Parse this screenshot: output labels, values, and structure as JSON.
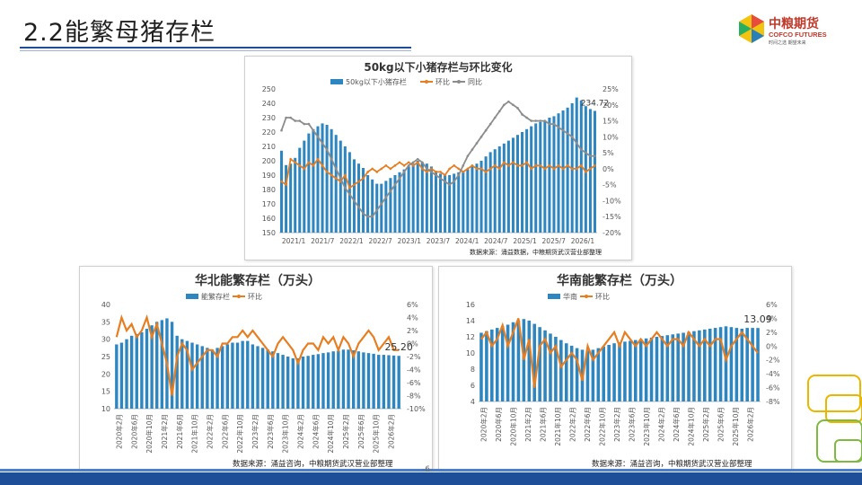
{
  "slide": {
    "title": "2.2能繁母猪存栏",
    "page_number": "-6-"
  },
  "logo": {
    "cn": "中粮期货",
    "en": "COFCO FUTURES",
    "tag": "时间之选 期望未来"
  },
  "colors": {
    "bar": "#2e86c1",
    "line_orange": "#e67e22",
    "line_gray": "#8c8c8c",
    "brand_blue": "#1f4e99"
  },
  "chart_data": [
    {
      "type": "bar",
      "title": "50kg以下小猪存栏与环比变化",
      "legend": [
        "50kg以下小猪存栏",
        "环比",
        "同比"
      ],
      "x_ticks": [
        "2021/1",
        "2021/7",
        "2022/1",
        "2022/7",
        "2023/1",
        "2023/7",
        "2024/1",
        "2024/7",
        "2025/1",
        "2025/7",
        "2026/1"
      ],
      "ylim": [
        150,
        250
      ],
      "y_ticks": [
        "250",
        "240",
        "230",
        "220",
        "210",
        "200",
        "190",
        "180",
        "170",
        "160",
        "150"
      ],
      "y2lim": [
        -20,
        25
      ],
      "y2_ticks": [
        "25%",
        "20%",
        "15%",
        "10%",
        "5%",
        "0%",
        "-5%",
        "-10%",
        "-15%",
        "-20%"
      ],
      "annotation": "234.72",
      "source": "数据来源：涌益数据，中粮期货武汉营业部整理",
      "series": [
        {
          "name": "50kg以下小猪存栏",
          "kind": "bar",
          "values": [
            207,
            197,
            198,
            202,
            209,
            214,
            219,
            222,
            224,
            226,
            225,
            222,
            218,
            214,
            210,
            206,
            201,
            198,
            195,
            190,
            187,
            184,
            184,
            186,
            188,
            190,
            192,
            194,
            196,
            198,
            200,
            199,
            198,
            196,
            193,
            191,
            190,
            190,
            191,
            192,
            193,
            194,
            196,
            198,
            200,
            203,
            206,
            208,
            210,
            212,
            214,
            216,
            218,
            220,
            222,
            224,
            226,
            227,
            228,
            230,
            231,
            233,
            235,
            237,
            240,
            244,
            242,
            238,
            236,
            234.72
          ]
        },
        {
          "name": "环比",
          "kind": "line",
          "values": [
            -4,
            -5,
            3,
            2,
            1,
            0,
            2,
            1,
            3,
            1,
            -1,
            -2,
            -3,
            -4,
            -2,
            -6,
            -5,
            -4,
            -3,
            -1,
            0,
            -1,
            0,
            1,
            0,
            1,
            2,
            1,
            2,
            1,
            2,
            0,
            -1,
            0,
            -1,
            -1,
            -2,
            0,
            1,
            0,
            -1,
            0,
            1,
            0,
            0,
            -1,
            0,
            1,
            0,
            2,
            1,
            2,
            1,
            1,
            2,
            0,
            1,
            1,
            0,
            1,
            0,
            1,
            0,
            1,
            0,
            0,
            1,
            -1,
            0,
            1
          ]
        },
        {
          "name": "同比",
          "kind": "line",
          "values": [
            12,
            16,
            16,
            15,
            15,
            14,
            14,
            12,
            10,
            8,
            6,
            3,
            0,
            -3,
            -6,
            -8,
            -10,
            -12,
            -14,
            -15,
            -15,
            -13,
            -11,
            -9,
            -7,
            -5,
            -3,
            -1,
            1,
            2,
            3,
            2,
            0,
            -1,
            -2,
            -3,
            -4,
            -5,
            -4,
            -2,
            1,
            4,
            6,
            8,
            10,
            12,
            14,
            16,
            18,
            20,
            21,
            20,
            19,
            17,
            16,
            15,
            15,
            15,
            15,
            14,
            14,
            13,
            12,
            11,
            10,
            8,
            6,
            5,
            4,
            4
          ]
        }
      ]
    },
    {
      "type": "bar",
      "title": "华北能繁存栏（万头）",
      "legend": [
        "能繁存栏",
        "环比"
      ],
      "x_ticks": [
        "2020年2月",
        "2020年6月",
        "2020年10月",
        "2021年2月",
        "2021年6月",
        "2021年10月",
        "2022年2月",
        "2022年6月",
        "2022年10月",
        "2023年2月",
        "2023年6月",
        "2023年10月",
        "2024年2月",
        "2024年6月",
        "2024年10月",
        "2025年2月",
        "2025年6月",
        "2025年10月",
        "2026年2月"
      ],
      "ylim": [
        10,
        40
      ],
      "y_ticks": [
        "40",
        "35",
        "30",
        "25",
        "20",
        "15",
        "10"
      ],
      "y2lim": [
        -10,
        6
      ],
      "y2_ticks": [
        "6%",
        "4%",
        "2%",
        "0%",
        "-2%",
        "-4%",
        "-6%",
        "-8%",
        "-10%"
      ],
      "annotation": "25.20",
      "source": "数据来源：涌益咨询，中粮期货武汉营业部整理",
      "series": [
        {
          "name": "能繁存栏",
          "kind": "bar",
          "values": [
            28.5,
            29,
            30,
            31,
            31.5,
            32,
            33,
            34,
            35,
            35.5,
            36,
            35,
            31,
            30,
            29.5,
            29,
            28.5,
            28,
            27.5,
            27,
            27.5,
            28,
            28.5,
            29,
            29,
            29.5,
            29.5,
            28.5,
            28,
            27.5,
            27,
            26.5,
            26,
            25.5,
            25,
            24.5,
            24.5,
            25,
            25.2,
            25.5,
            25.7,
            26,
            26.2,
            26.5,
            26.7,
            27,
            27,
            26.8,
            26.5,
            26.2,
            26,
            25.8,
            25.5,
            25.5,
            25.4,
            25.3,
            25.2
          ]
        },
        {
          "name": "环比",
          "kind": "line",
          "values": [
            1,
            4,
            2,
            3,
            1,
            2,
            4,
            1,
            3,
            0,
            -3,
            -8,
            -2,
            0,
            -1,
            -4,
            -3,
            -2,
            -1,
            -1,
            -2,
            0,
            0,
            1,
            1,
            2,
            1,
            2,
            1,
            0,
            -1,
            -2,
            0,
            1,
            0,
            -1,
            -3,
            -1,
            0,
            0,
            -1,
            1,
            0,
            1,
            -1,
            1,
            0,
            -2,
            0,
            1,
            2,
            1,
            -1,
            0,
            1,
            -1,
            -1
          ]
        }
      ]
    },
    {
      "type": "bar",
      "title": "华南能繁存栏（万头）",
      "legend": [
        "华南",
        "环比"
      ],
      "x_ticks": [
        "2020年2月",
        "2020年6月",
        "2020年10月",
        "2021年2月",
        "2021年6月",
        "2021年10月",
        "2022年2月",
        "2022年6月",
        "2022年10月",
        "2023年2月",
        "2023年6月",
        "2023年10月",
        "2024年2月",
        "2024年6月",
        "2024年10月",
        "2025年2月",
        "2025年6月",
        "2025年10月",
        "2026年2月"
      ],
      "ylim": [
        4,
        16
      ],
      "y_ticks": [
        "16",
        "14",
        "12",
        "10",
        "8",
        "6",
        "4"
      ],
      "y2lim": [
        -8,
        6
      ],
      "y2_ticks": [
        "6%",
        "4%",
        "2%",
        "0%",
        "-2%",
        "-4%",
        "-6%",
        "-8%"
      ],
      "annotation": "13.09",
      "source": "数据来源：涌益咨询，中粮期货武汉营业部整理",
      "series": [
        {
          "name": "华南",
          "kind": "bar",
          "values": [
            12.5,
            12.7,
            12.9,
            13.1,
            13.3,
            13.5,
            13.8,
            14,
            14.2,
            14,
            13.6,
            13.2,
            12.8,
            12.4,
            12,
            11.6,
            11.2,
            10.9,
            10.6,
            10.4,
            10.3,
            10.4,
            10.6,
            10.8,
            11,
            11.2,
            11.3,
            11.4,
            11.5,
            11.6,
            11.7,
            11.8,
            11.9,
            12,
            12.1,
            12.2,
            12.3,
            12.4,
            12.5,
            12.6,
            12.7,
            12.8,
            12.9,
            13,
            13.1,
            13.2,
            13.3,
            13.2,
            13.1,
            13,
            13.1,
            13.1,
            13.09
          ]
        },
        {
          "name": "环比",
          "kind": "line",
          "values": [
            1,
            2,
            0,
            1,
            3,
            0,
            2,
            4,
            -2,
            1,
            -6,
            0,
            1,
            -1,
            0,
            -3,
            -2,
            -1,
            -2,
            -5,
            0,
            -2,
            -1,
            0,
            1,
            2,
            0,
            2,
            1,
            0,
            1,
            0,
            1,
            2,
            1,
            0,
            1,
            1,
            0,
            2,
            1,
            0,
            1,
            0,
            1,
            1,
            -2,
            0,
            1,
            2,
            1,
            0,
            -1
          ]
        }
      ]
    }
  ]
}
